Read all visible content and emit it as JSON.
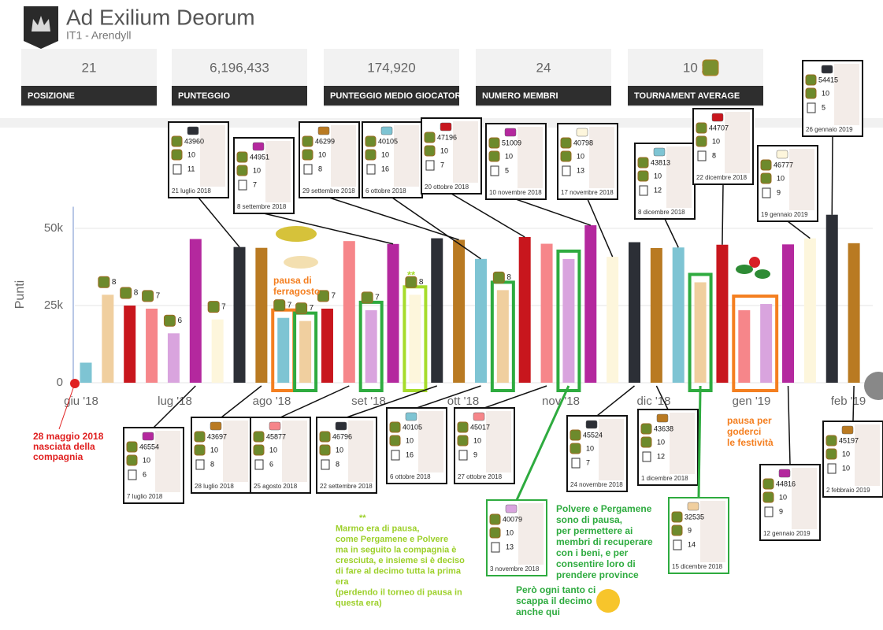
{
  "header": {
    "title": "Ad Exilium Deorum",
    "subtitle": "IT1 - Arendyll"
  },
  "stats": [
    {
      "value": "21",
      "label": "POSIZIONE"
    },
    {
      "value": "6,196,433",
      "label": "PUNTEGGIO"
    },
    {
      "value": "174,920",
      "label": "PUNTEGGIO MEDIO GIOCATORI"
    },
    {
      "value": "24",
      "label": "NUMERO MEMBRI"
    },
    {
      "value": "10 x",
      "label": "TOURNAMENT AVERAGE"
    }
  ],
  "chart_data": {
    "type": "bar",
    "ylabel": "Punti",
    "categories": [
      null,
      null,
      null,
      null,
      null,
      null,
      null,
      null,
      null,
      null,
      null,
      null,
      null,
      null,
      null,
      null,
      null,
      null,
      null,
      null,
      null,
      null,
      null,
      null,
      null,
      null,
      null,
      null,
      null,
      null,
      null,
      null,
      null,
      null,
      null,
      null
    ],
    "values": [
      6500,
      28500,
      25000,
      24000,
      16000,
      46554,
      20500,
      43960,
      43697,
      21000,
      20000,
      24000,
      45877,
      23500,
      44951,
      28500,
      46796,
      46299,
      40105,
      30000,
      47196,
      45017,
      40079,
      51009,
      40798,
      45524,
      43638,
      43813,
      32535,
      44707,
      23500,
      25500,
      44816,
      46777,
      54415,
      45197
    ],
    "colors": [
      "#7ec4d3",
      "#f0cf9f",
      "#c8161d",
      "#f6868a",
      "#d9a4de",
      "#b4289e",
      "#fdf6dc",
      "#2c2f36",
      "#b97a22"
    ],
    "badge_labels": [
      null,
      "8",
      "8",
      "7",
      "6",
      null,
      "7",
      null,
      null,
      "7",
      "7",
      "7",
      null,
      "7",
      null,
      "8",
      null,
      null,
      null,
      "8",
      null,
      null,
      null,
      null,
      null,
      null,
      null,
      null,
      null,
      null,
      null,
      null,
      null,
      null,
      null,
      null
    ],
    "month_labels": [
      "giu '18",
      "lug '18",
      "ago '18",
      "set '18",
      "ott '18",
      "nov '18",
      "dic '18",
      "gen '19",
      "feb '19"
    ],
    "ylim": [
      0,
      57000
    ],
    "yticks": [
      {
        "value": 0,
        "label": "0"
      },
      {
        "value": 25000,
        "label": "25k"
      },
      {
        "value": 50000,
        "label": "50k"
      }
    ],
    "grid": true,
    "cards": [
      {
        "points": "43960",
        "a": "10",
        "b": "11",
        "date": "21 luglio 2018"
      },
      {
        "points": "44951",
        "a": "10",
        "b": "7",
        "date": "8 settembre 2018"
      },
      {
        "points": "46299",
        "a": "10",
        "b": "8",
        "date": "29 settembre 2018"
      },
      {
        "points": "40105",
        "a": "10",
        "b": "16",
        "date": "6 ottobre 2018"
      },
      {
        "points": "47196",
        "a": "10",
        "b": "7",
        "date": "20 ottobre 2018"
      },
      {
        "points": "51009",
        "a": "10",
        "b": "5",
        "date": "10 novembre 2018"
      },
      {
        "points": "40798",
        "a": "10",
        "b": "13",
        "date": "17 novembre 2018"
      },
      {
        "points": "43813",
        "a": "10",
        "b": "12",
        "date": "8 dicembre 2018"
      },
      {
        "points": "44707",
        "a": "10",
        "b": "8",
        "date": "22 dicembre 2018"
      },
      {
        "points": "46777",
        "a": "10",
        "b": "9",
        "date": "19 gennaio 2019"
      },
      {
        "points": "54415",
        "a": "10",
        "b": "5",
        "date": "26 gennaio 2019"
      },
      {
        "points": "46554",
        "a": "10",
        "b": "6",
        "date": "7 luglio 2018"
      },
      {
        "points": "43697",
        "a": "10",
        "b": "8",
        "date": "28 luglio 2018"
      },
      {
        "points": "45877",
        "a": "10",
        "b": "6",
        "date": "25 agosto 2018"
      },
      {
        "points": "46796",
        "a": "10",
        "b": "8",
        "date": "22 settembre 2018"
      },
      {
        "points": "40105",
        "a": "10",
        "b": "16",
        "date": "6 ottobre 2018"
      },
      {
        "points": "45017",
        "a": "10",
        "b": "9",
        "date": "27 ottobre 2018"
      },
      {
        "points": "45524",
        "a": "10",
        "b": "7",
        "date": "24 novembre 2018"
      },
      {
        "points": "43638",
        "a": "10",
        "b": "12",
        "date": "1 dicembre 2018"
      },
      {
        "points": "40079",
        "a": "10",
        "b": "13",
        "date": "3 novembre 2018"
      },
      {
        "points": "32535",
        "a": "9",
        "b": "14",
        "date": "15 dicembre 2018"
      },
      {
        "points": "44816",
        "a": "10",
        "b": "9",
        "date": "12 gennaio 2019"
      },
      {
        "points": "45197",
        "a": "10",
        "b": "10",
        "date": "2 febbraio 2019"
      }
    ],
    "notes": [
      {
        "lines": [
          "28 maggio 2018",
          "nasciata della",
          "compagnia"
        ]
      },
      {
        "lines": [
          "pausa di",
          "ferragosto"
        ]
      },
      {
        "lines": [
          "**"
        ]
      },
      {
        "lines": [
          "pausa per",
          "goderci",
          "le festività"
        ]
      },
      {
        "lines": [
          "**",
          "Marmo era di pausa,",
          "come Pergamene e  Polvere",
          "ma in seguito la compagnia è",
          "cresciuta, e insieme si è deciso",
          "di fare al decimo tutta la prima",
          "era",
          "(perdendo il torneo di pausa in",
          "questa era)"
        ]
      },
      {
        "lines": [
          "Polvere e Pergamene",
          "sono di pausa,",
          "per permettere ai",
          "membri di recuperare",
          "con i beni, e per",
          "consentire loro di",
          "prendere province"
        ]
      },
      {
        "lines": [
          "Però ogni tanto ci",
          "scappa il decimo",
          "anche qui"
        ]
      }
    ]
  }
}
